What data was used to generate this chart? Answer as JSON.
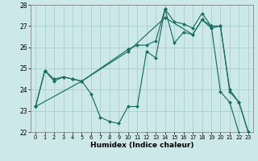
{
  "xlabel": "Humidex (Indice chaleur)",
  "xlim": [
    -0.5,
    23.5
  ],
  "ylim": [
    22,
    28
  ],
  "yticks": [
    22,
    23,
    24,
    25,
    26,
    27,
    28
  ],
  "xticks": [
    0,
    1,
    2,
    3,
    4,
    5,
    6,
    7,
    8,
    9,
    10,
    11,
    12,
    13,
    14,
    15,
    16,
    17,
    18,
    19,
    20,
    21,
    22,
    23
  ],
  "bg_color": "#cce8e8",
  "grid_color": "#aad0d0",
  "line_color": "#1a6e62",
  "line1_x": [
    0,
    1,
    2,
    3,
    4,
    5,
    6,
    7,
    8,
    9,
    10,
    11,
    12,
    13,
    14,
    15,
    16,
    17,
    18,
    19,
    20,
    21,
    22
  ],
  "line1_y": [
    23.2,
    24.9,
    24.5,
    24.6,
    24.5,
    24.4,
    23.8,
    22.7,
    22.5,
    22.4,
    23.2,
    23.2,
    25.8,
    25.5,
    27.8,
    26.2,
    26.7,
    26.6,
    27.3,
    27.0,
    23.9,
    23.4,
    21.95
  ],
  "line2_x": [
    0,
    1,
    2,
    3,
    4,
    5,
    10,
    11,
    12,
    13,
    14,
    15,
    16,
    17,
    18,
    19,
    20,
    21,
    22,
    23
  ],
  "line2_y": [
    23.2,
    24.9,
    24.4,
    24.6,
    24.5,
    24.4,
    25.9,
    26.1,
    26.1,
    26.3,
    27.8,
    27.2,
    27.1,
    26.9,
    27.6,
    27.0,
    27.0,
    24.0,
    23.4,
    22.0
  ],
  "line3_x": [
    0,
    5,
    10,
    14,
    17,
    18,
    19,
    20,
    21,
    22,
    23
  ],
  "line3_y": [
    23.2,
    24.4,
    25.8,
    27.4,
    26.6,
    27.3,
    26.9,
    27.0,
    23.9,
    23.4,
    22.0
  ]
}
